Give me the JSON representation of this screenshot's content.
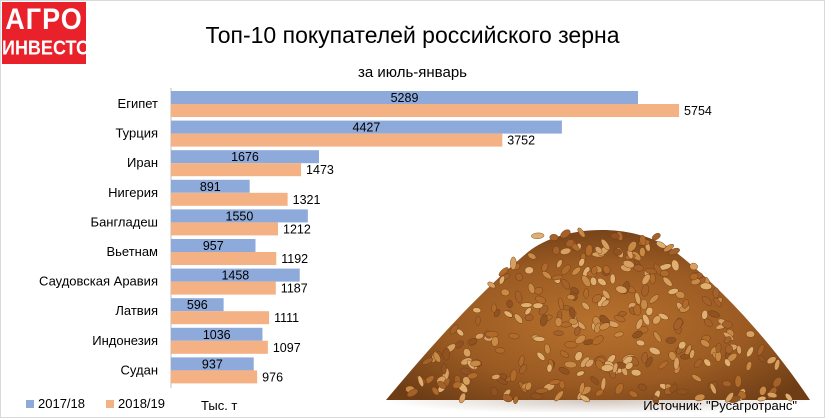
{
  "logo": {
    "line1": "АГРО",
    "line2": "ИНВЕСТОР"
  },
  "title": "Топ-10 покупателей российского зерна",
  "subtitle": "за июль-январь",
  "unit": "Тыс. т",
  "source": "Источник: \"Русагротранс\"",
  "colors": {
    "series_2017": "#8eaadb",
    "series_2018": "#f4b183",
    "logo_bg": "#e8212b"
  },
  "chart_data": {
    "type": "bar",
    "orientation": "horizontal",
    "categories": [
      "Египет",
      "Турция",
      "Иран",
      "Нигерия",
      "Бангладеш",
      "Вьетнам",
      "Саудовская Аравия",
      "Латвия",
      "Индонезия",
      "Судан"
    ],
    "series": [
      {
        "name": "2017/18",
        "color": "#8eaadb",
        "values": [
          5289,
          4427,
          1676,
          891,
          1550,
          957,
          1458,
          596,
          1036,
          937
        ]
      },
      {
        "name": "2018/19",
        "color": "#f4b183",
        "values": [
          5754,
          3752,
          1473,
          1321,
          1212,
          1192,
          1187,
          1111,
          1097,
          976
        ]
      }
    ],
    "xlim": [
      0,
      6000
    ],
    "grid": false,
    "data_labels": true,
    "legend_position": "bottom-left"
  }
}
